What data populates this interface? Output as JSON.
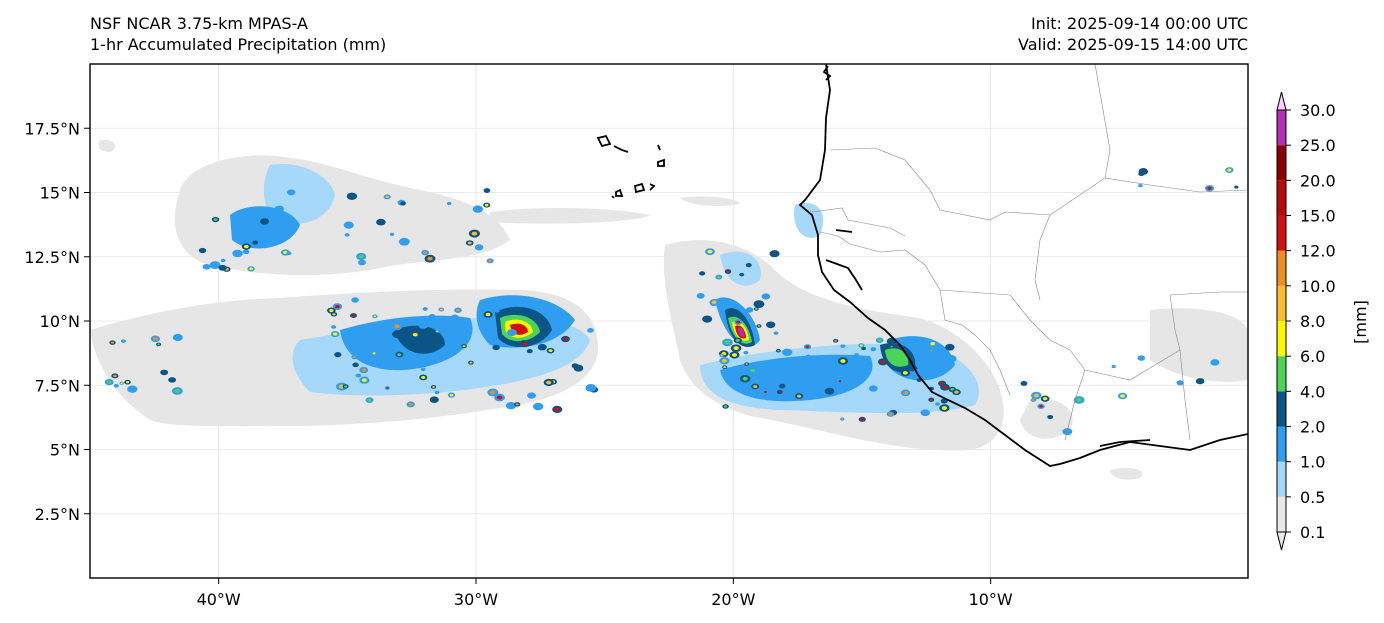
{
  "header": {
    "model": "NSF NCAR 3.75-km MPAS-A",
    "field": "1-hr Accumulated Precipitation (mm)",
    "init": "Init: 2025-09-14 00:00 UTC",
    "valid": "Valid: 2025-09-15 14:00 UTC"
  },
  "map": {
    "lon_range": [
      -45,
      0
    ],
    "lat_range": [
      0,
      20
    ],
    "lon_ticks": [
      {
        "value": -40,
        "label": "40°W"
      },
      {
        "value": -30,
        "label": "30°W"
      },
      {
        "value": -20,
        "label": "20°W"
      },
      {
        "value": -10,
        "label": "10°W"
      }
    ],
    "lat_ticks": [
      {
        "value": 2.5,
        "label": "2.5°N"
      },
      {
        "value": 5,
        "label": "5°N"
      },
      {
        "value": 7.5,
        "label": "7.5°N"
      },
      {
        "value": 10,
        "label": "10°N"
      },
      {
        "value": 12.5,
        "label": "12.5°N"
      },
      {
        "value": 15,
        "label": "15°N"
      },
      {
        "value": 17.5,
        "label": "17.5°N"
      }
    ],
    "gridlines": true
  },
  "colorbar": {
    "unit_label": "[mm]",
    "levels": [
      {
        "label": "0.1",
        "color": "#e8e8e8"
      },
      {
        "label": "0.5",
        "color": "#a6d8fa"
      },
      {
        "label": "1.0",
        "color": "#2f9ef0"
      },
      {
        "label": "2.0",
        "color": "#0a5486"
      },
      {
        "label": "4.0",
        "color": "#4cd35a"
      },
      {
        "label": "6.0",
        "color": "#fdf800"
      },
      {
        "label": "8.0",
        "color": "#fbbd2e"
      },
      {
        "label": "10.0",
        "color": "#ee8d23"
      },
      {
        "label": "12.0",
        "color": "#d40f0f"
      },
      {
        "label": "15.0",
        "color": "#b70b0b"
      },
      {
        "label": "20.0",
        "color": "#8b0000"
      },
      {
        "label": "25.0",
        "color": "#b42fb4"
      },
      {
        "label": "30.0",
        "color": "#fccbf6"
      }
    ]
  }
}
